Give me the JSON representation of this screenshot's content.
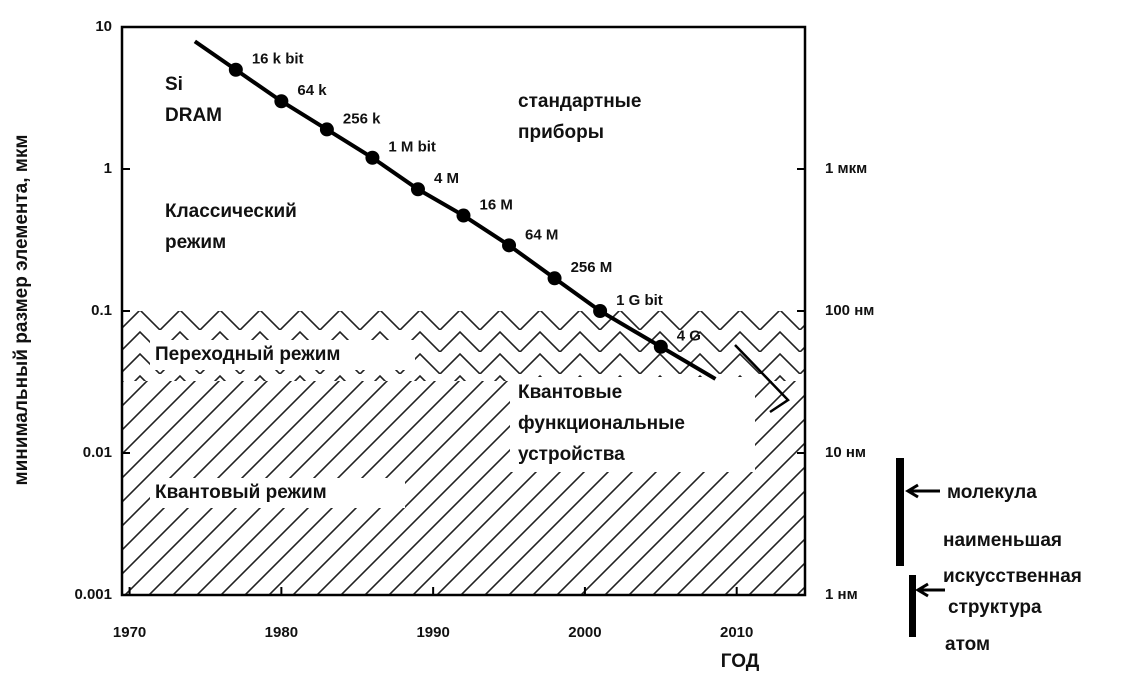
{
  "chart_data": {
    "type": "line",
    "ylabel": "минимальный размер элемента, мкм",
    "xlabel": "ГОД",
    "x": [
      1977,
      1980,
      1983,
      1986,
      1989,
      1992,
      1995,
      1998,
      2001,
      2005
    ],
    "series": [
      {
        "name": "Si DRAM",
        "color": "#000000",
        "values": [
          5,
          3,
          1.9,
          1.2,
          0.72,
          0.47,
          0.29,
          0.17,
          0.1,
          0.056
        ],
        "point_labels": [
          "16 k bit",
          "64 k",
          "256 k",
          "1 M bit",
          "4 M",
          "16 M",
          "64 M",
          "256 M",
          "1 G bit",
          "4 G"
        ]
      }
    ],
    "xlim": [
      1969.5,
      2014.5
    ],
    "xticks": [
      1970,
      1980,
      1990,
      2000,
      2010
    ],
    "ylim": [
      0.001,
      10
    ],
    "yticks": [
      10,
      1,
      0.1,
      0.01,
      0.001
    ],
    "yscale": "log",
    "y2lim": [
      0.001,
      10
    ],
    "y2ticks": [
      {
        "value": 1,
        "label": "1 мкм"
      },
      {
        "value": 0.1,
        "label": "100 нм"
      },
      {
        "value": 0.01,
        "label": "10 нм"
      },
      {
        "value": 0.001,
        "label": "1 нм"
      }
    ],
    "annotations": {
      "si_dram": [
        "Si",
        "DRAM"
      ],
      "standard": [
        "стандартные",
        "приборы"
      ],
      "classic": [
        "Классический",
        "режим"
      ],
      "transition": "Переходный режим",
      "quantum_devices": [
        "Квантовые",
        "функциональные",
        "устройства"
      ],
      "quantum": "Квантовый режим",
      "molecule": "молекула",
      "smallest": [
        "наименьшая",
        "искусственная",
        "структура"
      ],
      "atom": "атом"
    }
  }
}
